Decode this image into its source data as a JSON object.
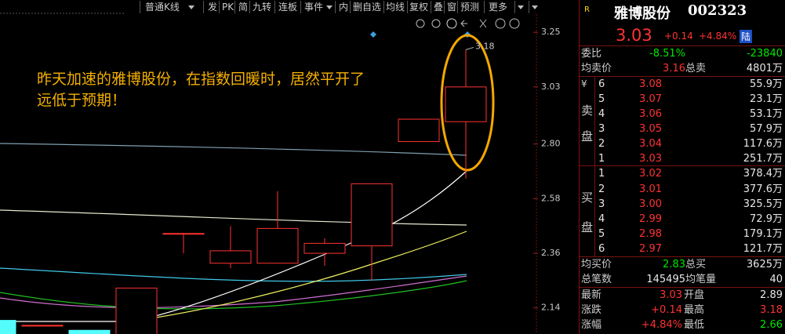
{
  "toolbar": {
    "items": [
      "普通K线",
      "发",
      "PK",
      "简",
      "九转",
      "连板",
      "事件",
      "内",
      "删自选",
      "均线",
      "复权",
      "叠",
      "窗",
      "预测",
      "更多"
    ]
  },
  "chart": {
    "ylim": [
      2.035,
      3.38
    ],
    "yticks": [
      3.25,
      3.03,
      {
        "value": 2.8,
        "label": "2.80"
      },
      2.58,
      2.36,
      2.14
    ],
    "candles": [
      {
        "open": 2.09,
        "high": 2.09,
        "low": 2.03,
        "close": 2.03
      },
      {
        "open": 2.07,
        "high": 2.07,
        "low": 2.07,
        "close": 2.07
      },
      {
        "open": 2.05,
        "high": 2.05,
        "low": 2.02,
        "close": 2.02
      },
      {
        "open": 2.02,
        "high": 2.22,
        "low": 2.02,
        "close": 2.22
      },
      {
        "open": 2.44,
        "high": 2.44,
        "low": 2.36,
        "close": 2.44
      },
      {
        "open": 2.32,
        "high": 2.47,
        "low": 2.3,
        "close": 2.37
      },
      {
        "open": 2.32,
        "high": 2.61,
        "low": 2.32,
        "close": 2.46
      },
      {
        "open": 2.36,
        "high": 2.42,
        "low": 2.31,
        "close": 2.4
      },
      {
        "open": 2.39,
        "high": 2.64,
        "low": 2.25,
        "close": 2.64
      },
      {
        "open": 2.81,
        "high": 2.9,
        "low": 2.81,
        "close": 2.9
      },
      {
        "open": 2.89,
        "high": 3.18,
        "low": 2.66,
        "close": 3.03
      }
    ],
    "max_label": 3.18,
    "annotation": [
      "昨天加速的雅博股份，在指数回暖时，居然平开了",
      "远低于预期！"
    ]
  },
  "quote": {
    "badge": "R",
    "name": "雅博股份",
    "code": "002323",
    "price": "3.03",
    "change": "+0.14",
    "change_pct": "+4.84%",
    "market": "陆",
    "weibi": {
      "label": "委比",
      "pct": "-8.51%",
      "diff": "-23840"
    },
    "avg_sell": {
      "label": "均卖价",
      "value": "3.16",
      "total_label": "总卖",
      "total": "4801万"
    },
    "sell": {
      "mark": "¥",
      "side": [
        "卖",
        "盘"
      ],
      "levels": [
        {
          "level": "6",
          "price": "3.08",
          "volume": "55.9万"
        },
        {
          "level": "5",
          "price": "3.07",
          "volume": "23.1万"
        },
        {
          "level": "4",
          "price": "3.06",
          "volume": "53.1万"
        },
        {
          "level": "3",
          "price": "3.05",
          "volume": "57.9万"
        },
        {
          "level": "2",
          "price": "3.04",
          "volume": "117.6万"
        },
        {
          "level": "1",
          "price": "3.03",
          "volume": "251.7万"
        }
      ]
    },
    "buy": {
      "side": [
        "买",
        "盘"
      ],
      "levels": [
        {
          "level": "1",
          "price": "3.02",
          "volume": "378.4万"
        },
        {
          "level": "2",
          "price": "3.01",
          "volume": "377.6万"
        },
        {
          "level": "3",
          "price": "3.00",
          "volume": "325.5万"
        },
        {
          "level": "4",
          "price": "2.99",
          "volume": "72.9万"
        },
        {
          "level": "5",
          "price": "2.98",
          "volume": "179.1万"
        },
        {
          "level": "6",
          "price": "2.97",
          "volume": "121.7万"
        }
      ]
    },
    "avg_buy": {
      "label": "均买价",
      "value": "2.83",
      "total_label": "总买",
      "total": "3625万"
    },
    "trades": {
      "label": "总笔数",
      "value": "145495",
      "avg_label": "均笔量",
      "avg": "40"
    },
    "stats": [
      {
        "label": "最新",
        "value": "3.03",
        "label2": "开盘",
        "value2": "2.89"
      },
      {
        "label": "涨跌",
        "value": "+0.14",
        "label2": "最高",
        "value2": "3.18"
      },
      {
        "label": "涨幅",
        "value": "+4.84%",
        "label2": "最低",
        "value2": "2.66"
      }
    ]
  }
}
